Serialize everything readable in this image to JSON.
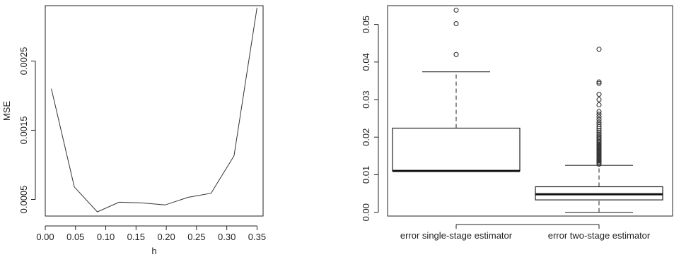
{
  "chart_data": [
    {
      "type": "line",
      "title": "",
      "xlabel": "h",
      "ylabel": "MSE",
      "xlim": [
        0.0,
        0.36
      ],
      "ylim": [
        0.00026,
        0.0033
      ],
      "xticks": [
        0.0,
        0.05,
        0.1,
        0.15,
        0.2,
        0.25,
        0.3,
        0.35
      ],
      "xtick_labels": [
        "0.00",
        "0.05",
        "0.10",
        "0.15",
        "0.20",
        "0.25",
        "0.30",
        "0.35"
      ],
      "yticks": [
        0.0005,
        0.0015,
        0.0025
      ],
      "ytick_labels": [
        "0.0005",
        "0.0015",
        "0.0025"
      ],
      "grid": false,
      "series": [
        {
          "x": [
            0.01,
            0.048,
            0.086,
            0.122,
            0.16,
            0.198,
            0.236,
            0.274,
            0.312,
            0.35
          ],
          "y": [
            0.0021,
            0.00068,
            0.00032,
            0.00046,
            0.00045,
            0.00042,
            0.00053,
            0.00059,
            0.00113,
            0.00327
          ]
        }
      ]
    },
    {
      "type": "box",
      "title": "",
      "xlabel": "",
      "ylabel": "",
      "ylim": [
        -0.001,
        0.055
      ],
      "yticks": [
        0.0,
        0.01,
        0.02,
        0.03,
        0.04,
        0.05
      ],
      "ytick_labels": [
        "0.00",
        "0.01",
        "0.02",
        "0.03",
        "0.04",
        "0.05"
      ],
      "grid": false,
      "categories": [
        "error single-stage estimator",
        "error two-stage estimator"
      ],
      "boxes": [
        {
          "category": "error single-stage estimator",
          "whisker_low": 0.011,
          "q1": 0.011,
          "median": 0.011,
          "q3": 0.0224,
          "whisker_high": 0.0374,
          "outliers": [
            0.042,
            0.0502,
            0.0538
          ]
        },
        {
          "category": "error two-stage estimator",
          "whisker_low": 0.0,
          "q1": 0.0033,
          "median": 0.0048,
          "q3": 0.0068,
          "whisker_high": 0.0125,
          "outliers": [
            0.0128,
            0.0131,
            0.0134,
            0.0137,
            0.014,
            0.0143,
            0.0146,
            0.0149,
            0.0152,
            0.0155,
            0.0158,
            0.0161,
            0.0164,
            0.0167,
            0.017,
            0.0173,
            0.0176,
            0.0179,
            0.0182,
            0.0185,
            0.0188,
            0.0192,
            0.0196,
            0.02,
            0.0204,
            0.0208,
            0.0213,
            0.0218,
            0.0223,
            0.0228,
            0.0234,
            0.024,
            0.0247,
            0.0254,
            0.0261,
            0.0268,
            0.0286,
            0.03,
            0.0314,
            0.0343,
            0.0347,
            0.0434
          ]
        }
      ]
    }
  ]
}
